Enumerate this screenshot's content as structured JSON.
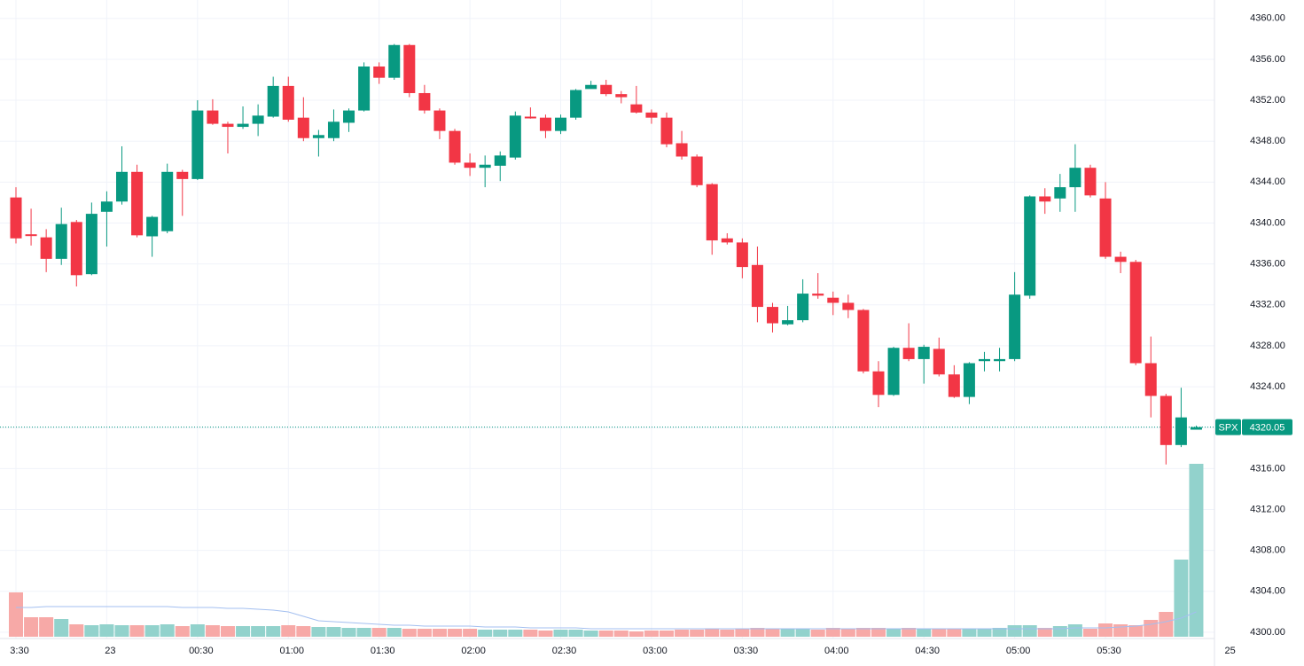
{
  "chart_data": {
    "type": "candlestick",
    "symbol": "SPX",
    "last_price": 4320.05,
    "up_color": "#089981",
    "down_color": "#f23645",
    "volume_up_color": "#92d2cc",
    "volume_down_color": "#f7a9a7",
    "volume_ma_color": "#a3bff0",
    "grid": true,
    "ylim": [
      4298,
      4361.8
    ],
    "yticks": [
      {
        "value": 4300,
        "label": "4300.00"
      },
      {
        "value": 4304,
        "label": "4304.00"
      },
      {
        "value": 4308,
        "label": "4308.00"
      },
      {
        "value": 4312,
        "label": "4312.00"
      },
      {
        "value": 4316,
        "label": "4316.00"
      },
      {
        "value": 4320,
        "label": "4320.00"
      },
      {
        "value": 4324,
        "label": "4324.00"
      },
      {
        "value": 4328,
        "label": "4328.00"
      },
      {
        "value": 4332,
        "label": "4332.00"
      },
      {
        "value": 4336,
        "label": "4336.00"
      },
      {
        "value": 4340,
        "label": "4340.00"
      },
      {
        "value": 4344,
        "label": "4344.00"
      },
      {
        "value": 4348,
        "label": "4348.00"
      },
      {
        "value": 4352,
        "label": "4352.00"
      },
      {
        "value": 4356,
        "label": "4356.00"
      },
      {
        "value": 4360,
        "label": "4360.00"
      }
    ],
    "xticks": [
      {
        "value": 0,
        "label": "3:30"
      },
      {
        "value": 6,
        "label": "23"
      },
      {
        "value": 12,
        "label": "00:30"
      },
      {
        "value": 18,
        "label": "01:00"
      },
      {
        "value": 24,
        "label": "01:30"
      },
      {
        "value": 30,
        "label": "02:00"
      },
      {
        "value": 36,
        "label": "02:30"
      },
      {
        "value": 42,
        "label": "03:00"
      },
      {
        "value": 48,
        "label": "03:30"
      },
      {
        "value": 54,
        "label": "04:00"
      },
      {
        "value": 60,
        "label": "04:30"
      },
      {
        "value": 66,
        "label": "05:00"
      },
      {
        "value": 72,
        "label": "05:30"
      },
      {
        "value": 80,
        "label": "25"
      }
    ],
    "open": [
      4342.5,
      4338.9,
      4338.6,
      4336.5,
      4340.1,
      4335.0,
      4341.1,
      4342.1,
      4345.0,
      4338.7,
      4339.2,
      4345.0,
      4344.3,
      4351.0,
      4349.7,
      4349.4,
      4349.7,
      4350.4,
      4353.4,
      4350.3,
      4348.3,
      4348.3,
      4349.8,
      4351.0,
      4355.3,
      4354.2,
      4357.4,
      4352.7,
      4351.0,
      4349.0,
      4345.9,
      4345.4,
      4345.6,
      4346.4,
      4350.4,
      4350.3,
      4349.0,
      4350.3,
      4353.1,
      4353.5,
      4352.6,
      4351.6,
      4350.8,
      4350.3,
      4347.8,
      4346.5,
      4343.8,
      4338.5,
      4338.1,
      4335.9,
      4331.8,
      4330.1,
      4330.5,
      4333.1,
      4332.7,
      4332.2,
      4331.5,
      4325.5,
      4323.2,
      4327.8,
      4326.7,
      4327.7,
      4325.2,
      4323.0,
      4326.5,
      4326.5,
      4326.7,
      4332.9,
      4342.6,
      4342.4,
      4343.5,
      4345.4,
      4342.4,
      4336.7,
      4336.2,
      4326.3,
      4323.1,
      4318.3,
      4319.8
    ],
    "high": [
      4343.5,
      4341.4,
      4339.4,
      4341.5,
      4340.3,
      4342.0,
      4343.1,
      4347.5,
      4345.7,
      4340.7,
      4345.8,
      4345.2,
      4352.0,
      4352.1,
      4349.9,
      4351.4,
      4351.6,
      4354.3,
      4354.3,
      4352.3,
      4349.1,
      4351.1,
      4351.2,
      4355.7,
      4355.7,
      4357.5,
      4357.5,
      4353.5,
      4351.2,
      4349.2,
      4346.8,
      4346.6,
      4347.0,
      4350.9,
      4351.3,
      4350.6,
      4350.6,
      4353.1,
      4353.9,
      4354.0,
      4352.9,
      4353.4,
      4351.1,
      4350.8,
      4349.0,
      4346.7,
      4343.9,
      4339.0,
      4338.5,
      4337.7,
      4332.2,
      4331.9,
      4334.5,
      4335.1,
      4333.3,
      4333.0,
      4331.6,
      4326.5,
      4327.9,
      4330.2,
      4328.1,
      4328.8,
      4326.1,
      4326.4,
      4327.4,
      4327.8,
      4335.2,
      4342.7,
      4343.4,
      4344.8,
      4347.7,
      4345.7,
      4344.0,
      4337.2,
      4336.4,
      4328.9,
      4323.3,
      4323.9,
      4320.2
    ],
    "low": [
      4338.0,
      4337.8,
      4335.2,
      4335.9,
      4333.8,
      4334.9,
      4337.7,
      4341.8,
      4338.6,
      4336.7,
      4339.0,
      4340.7,
      4344.2,
      4349.6,
      4346.8,
      4349.2,
      4348.5,
      4350.3,
      4349.9,
      4348.0,
      4346.5,
      4348.0,
      4348.9,
      4350.9,
      4353.6,
      4354.0,
      4352.3,
      4350.7,
      4348.2,
      4345.7,
      4344.6,
      4343.5,
      4344.1,
      4346.2,
      4350.2,
      4348.3,
      4348.7,
      4350.1,
      4353.3,
      4352.4,
      4351.7,
      4350.7,
      4349.7,
      4347.4,
      4346.2,
      4343.5,
      4336.9,
      4337.9,
      4334.6,
      4330.3,
      4329.3,
      4330.0,
      4330.3,
      4332.6,
      4331.0,
      4330.7,
      4325.3,
      4322.0,
      4323.1,
      4326.5,
      4324.3,
      4325.0,
      4322.9,
      4322.3,
      4325.5,
      4325.5,
      4326.5,
      4332.6,
      4340.9,
      4341.1,
      4341.1,
      4342.5,
      4336.5,
      4335.1,
      4326.1,
      4321.0,
      4316.4,
      4318.1,
      4319.9
    ],
    "close": [
      4338.5,
      4338.8,
      4336.5,
      4339.9,
      4334.9,
      4340.9,
      4342.1,
      4345.0,
      4338.8,
      4340.6,
      4345.0,
      4344.3,
      4351.0,
      4349.7,
      4349.4,
      4349.7,
      4350.5,
      4353.4,
      4350.1,
      4348.3,
      4348.6,
      4349.9,
      4351.0,
      4355.3,
      4354.2,
      4357.4,
      4352.7,
      4351.0,
      4349.0,
      4345.9,
      4345.4,
      4345.7,
      4346.6,
      4350.5,
      4350.3,
      4349.0,
      4350.3,
      4353.0,
      4353.5,
      4352.6,
      4352.3,
      4350.8,
      4350.3,
      4347.7,
      4346.5,
      4343.7,
      4338.3,
      4338.1,
      4335.7,
      4331.8,
      4330.2,
      4330.5,
      4333.1,
      4332.9,
      4332.2,
      4331.5,
      4325.5,
      4323.2,
      4327.8,
      4326.7,
      4327.9,
      4325.2,
      4323.0,
      4326.3,
      4326.7,
      4326.7,
      4333.0,
      4342.6,
      4342.1,
      4343.5,
      4345.4,
      4342.7,
      4336.7,
      4336.2,
      4326.3,
      4323.1,
      4318.3,
      4321.0,
      4320.05
    ],
    "volume": [
      50,
      22,
      22,
      20,
      14,
      13,
      14,
      13,
      13,
      13,
      14,
      12,
      14,
      13,
      12,
      12,
      12,
      12,
      13,
      12,
      11,
      11,
      10,
      10,
      10,
      10,
      9,
      9,
      9,
      9,
      9,
      8,
      8,
      8,
      8,
      7,
      8,
      8,
      7,
      7,
      7,
      6,
      7,
      7,
      8,
      8,
      9,
      8,
      9,
      10,
      9,
      9,
      9,
      8,
      10,
      9,
      10,
      10,
      9,
      10,
      9,
      9,
      9,
      9,
      9,
      10,
      13,
      13,
      10,
      12,
      14,
      9,
      15,
      14,
      13,
      19,
      28,
      87,
      195
    ],
    "volume_ma": [
      33,
      33,
      34,
      34,
      34,
      34,
      34,
      34,
      34,
      34,
      34,
      33,
      33,
      33,
      32,
      32,
      31,
      30,
      28,
      23,
      18,
      17,
      16,
      15,
      14,
      13,
      13,
      12,
      12,
      12,
      12,
      11,
      11,
      11,
      10,
      10,
      10,
      10,
      9,
      9,
      9,
      9,
      9,
      9,
      9,
      9,
      9,
      9,
      9,
      9,
      9,
      9,
      9,
      9,
      9,
      9,
      9,
      9,
      9,
      9,
      9,
      9,
      9,
      9,
      9,
      9,
      9,
      9,
      9,
      9,
      10,
      10,
      10,
      11,
      12,
      14,
      17,
      21,
      28
    ]
  }
}
